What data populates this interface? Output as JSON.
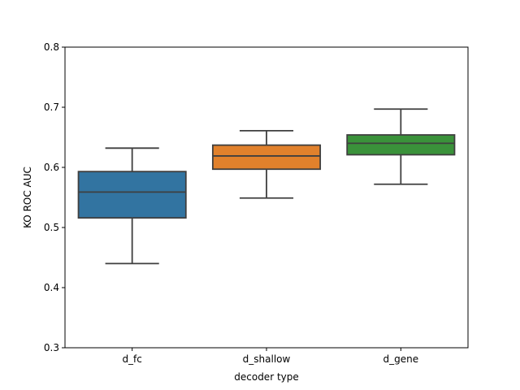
{
  "chart_data": {
    "type": "box",
    "xlabel": "decoder type",
    "ylabel": "KO ROC AUC",
    "ylim": [
      0.3,
      0.8
    ],
    "yticks": [
      "0.3",
      "0.4",
      "0.5",
      "0.6",
      "0.7",
      "0.8"
    ],
    "grid": false,
    "categories": [
      "d_fc",
      "d_shallow",
      "d_gene"
    ],
    "boxes": [
      {
        "category": "d_fc",
        "whisker_low": 0.44,
        "q1": 0.516,
        "median": 0.559,
        "q3": 0.593,
        "whisker_high": 0.632,
        "color": "#3274a1"
      },
      {
        "category": "d_shallow",
        "whisker_low": 0.549,
        "q1": 0.597,
        "median": 0.619,
        "q3": 0.637,
        "whisker_high": 0.661,
        "color": "#e1812c"
      },
      {
        "category": "d_gene",
        "whisker_low": 0.572,
        "q1": 0.621,
        "median": 0.64,
        "q3": 0.654,
        "whisker_high": 0.697,
        "color": "#3a923a"
      }
    ]
  }
}
